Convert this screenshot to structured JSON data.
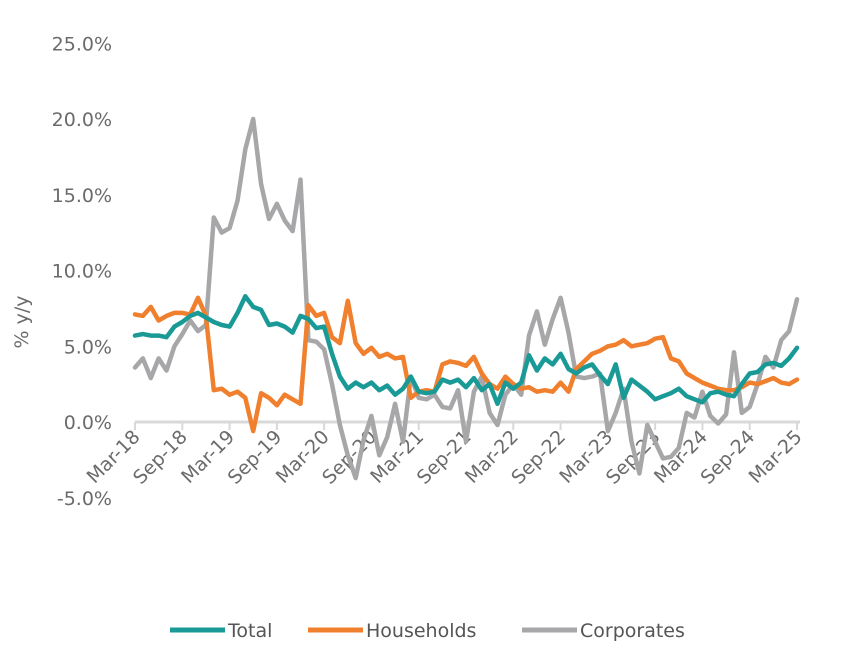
{
  "chart_data": {
    "type": "line",
    "title": "",
    "xlabel": "",
    "ylabel": "% y/y",
    "ylim": [
      -5,
      25
    ],
    "yticks": [
      -5,
      0,
      5,
      10,
      15,
      20,
      25
    ],
    "ytick_labels": [
      "-5.0%",
      "0.0%",
      "5.0%",
      "10.0%",
      "15.0%",
      "20.0%",
      "25.0%"
    ],
    "x_start": "Mar-18",
    "x_end": "Mar-25",
    "x_frequency": "monthly",
    "xtick_labels": [
      "Mar-18",
      "Sep-18",
      "Mar-19",
      "Sep-19",
      "Mar-20",
      "Sep-20",
      "Mar-21",
      "Sep-21",
      "Mar-22",
      "Sep-22",
      "Mar-23",
      "Sep-23",
      "Mar-24",
      "Sep-24",
      "Mar-25"
    ],
    "grid": false,
    "legend_position": "bottom",
    "series": [
      {
        "name": "Total",
        "color": "#1a9a96",
        "values": [
          5.7,
          5.8,
          5.7,
          5.7,
          5.6,
          6.3,
          6.6,
          7.0,
          7.2,
          6.9,
          6.6,
          6.4,
          6.3,
          7.2,
          8.3,
          7.6,
          7.4,
          6.4,
          6.5,
          6.3,
          5.9,
          7.0,
          6.8,
          6.2,
          6.3,
          4.5,
          3.0,
          2.2,
          2.6,
          2.3,
          2.6,
          2.1,
          2.4,
          1.8,
          2.2,
          3.0,
          2.0,
          1.9,
          2.0,
          2.8,
          2.6,
          2.8,
          2.3,
          2.9,
          2.1,
          2.5,
          1.2,
          2.6,
          2.2,
          2.6,
          4.4,
          3.4,
          4.2,
          3.8,
          4.5,
          3.5,
          3.2,
          3.6,
          3.8,
          3.1,
          2.5,
          3.8,
          1.6,
          2.8,
          2.4,
          2.0,
          1.5,
          1.7,
          1.9,
          2.2,
          1.7,
          1.5,
          1.3,
          1.9,
          2.0,
          1.8,
          1.7,
          2.5,
          3.2,
          3.3,
          3.8,
          3.9,
          3.7,
          4.2,
          4.9
        ]
      },
      {
        "name": "Households",
        "color": "#f07f2e",
        "values": [
          7.1,
          7.0,
          7.6,
          6.7,
          7.0,
          7.2,
          7.2,
          7.1,
          8.2,
          7.0,
          2.1,
          2.2,
          1.8,
          2.0,
          1.6,
          -0.6,
          1.9,
          1.6,
          1.1,
          1.8,
          1.5,
          1.2,
          7.7,
          7.0,
          7.2,
          5.6,
          5.2,
          8.0,
          5.2,
          4.5,
          4.9,
          4.3,
          4.5,
          4.2,
          4.3,
          1.6,
          2.0,
          2.1,
          2.0,
          3.8,
          4.0,
          3.9,
          3.7,
          4.3,
          3.2,
          2.5,
          2.2,
          3.0,
          2.5,
          2.2,
          2.3,
          2.0,
          2.1,
          2.0,
          2.6,
          2.0,
          3.5,
          4.0,
          4.5,
          4.7,
          5.0,
          5.1,
          5.4,
          5.0,
          5.1,
          5.2,
          5.5,
          5.6,
          4.2,
          4.0,
          3.2,
          2.9,
          2.6,
          2.4,
          2.2,
          2.1,
          2.1,
          2.3,
          2.6,
          2.5,
          2.7,
          2.9,
          2.6,
          2.5,
          2.8
        ]
      },
      {
        "name": "Corporates",
        "color": "#a7a7a9",
        "values": [
          3.6,
          4.2,
          2.9,
          4.2,
          3.4,
          5.0,
          5.8,
          6.7,
          6.0,
          6.4,
          13.5,
          12.5,
          12.8,
          14.6,
          18.0,
          20.0,
          15.7,
          13.4,
          14.4,
          13.3,
          12.6,
          16.0,
          5.4,
          5.3,
          4.8,
          2.5,
          -0.2,
          -2.2,
          -3.7,
          -1.2,
          0.4,
          -2.2,
          -1.0,
          1.2,
          -1.3,
          3.0,
          1.6,
          1.5,
          1.8,
          1.0,
          0.9,
          2.1,
          -1.3,
          2.0,
          3.0,
          0.6,
          -0.2,
          1.8,
          2.5,
          1.8,
          5.7,
          7.3,
          5.1,
          6.8,
          8.2,
          5.9,
          3.0,
          2.9,
          3.0,
          3.2,
          -0.6,
          0.6,
          2.2,
          -1.3,
          -3.4,
          -0.2,
          -1.3,
          -2.4,
          -2.3,
          -1.7,
          0.6,
          0.3,
          2.0,
          0.4,
          -0.1,
          0.5,
          4.6,
          0.6,
          1.0,
          2.5,
          4.3,
          3.6,
          5.4,
          6.0,
          8.1
        ]
      }
    ]
  }
}
